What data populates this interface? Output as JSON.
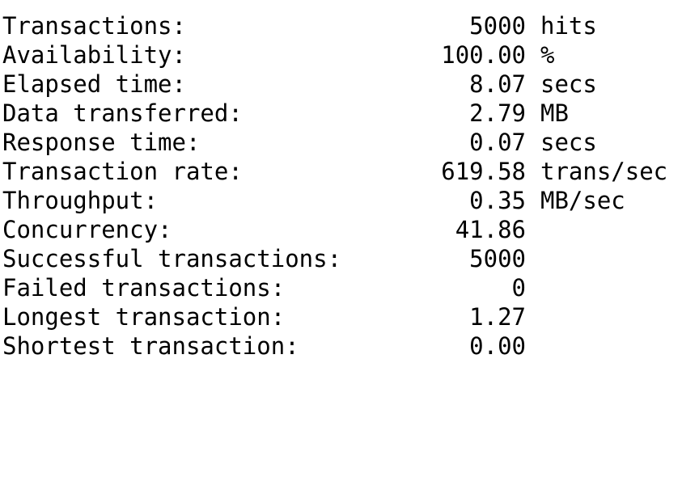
{
  "stats": [
    {
      "label": "Transactions:",
      "value": "5000",
      "unit": "hits"
    },
    {
      "label": "Availability:",
      "value": "100.00",
      "unit": "%"
    },
    {
      "label": "Elapsed time:",
      "value": "8.07",
      "unit": "secs"
    },
    {
      "label": "Data transferred:",
      "value": "2.79",
      "unit": "MB"
    },
    {
      "label": "Response time:",
      "value": "0.07",
      "unit": "secs"
    },
    {
      "label": "Transaction rate:",
      "value": "619.58",
      "unit": "trans/sec"
    },
    {
      "label": "Throughput:",
      "value": "0.35",
      "unit": "MB/sec"
    },
    {
      "label": "Concurrency:",
      "value": "41.86",
      "unit": ""
    },
    {
      "label": "Successful transactions:",
      "value": "5000",
      "unit": ""
    },
    {
      "label": "Failed transactions:",
      "value": "0",
      "unit": ""
    },
    {
      "label": "Longest transaction:",
      "value": "1.27",
      "unit": ""
    },
    {
      "label": "Shortest transaction:",
      "value": "0.00",
      "unit": ""
    }
  ]
}
